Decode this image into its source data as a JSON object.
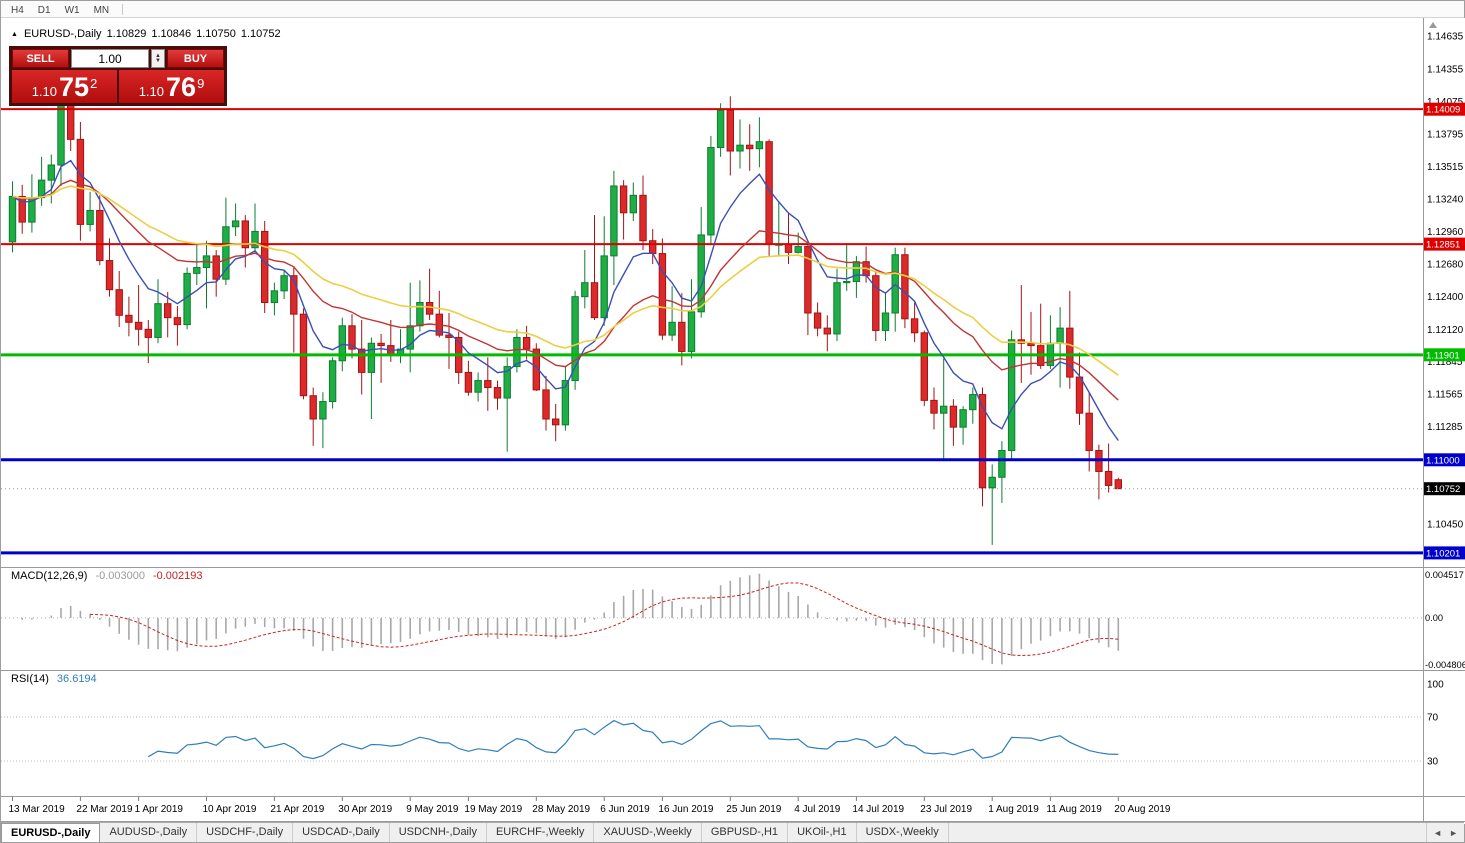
{
  "toolbar": {
    "timeframes": [
      "H4",
      "D1",
      "W1",
      "MN"
    ]
  },
  "chart_header": {
    "collapse_icon": "▲",
    "symbol": "EURUSD-,Daily",
    "open": "1.10829",
    "high": "1.10846",
    "low": "1.10750",
    "close": "1.10752"
  },
  "trade_panel": {
    "sell_label": "SELL",
    "buy_label": "BUY",
    "volume": "1.00",
    "spinner_up": "▲",
    "spinner_down": "▼",
    "sell_price": {
      "prefix": "1.10",
      "big": "75",
      "sup": "2"
    },
    "buy_price": {
      "prefix": "1.10",
      "big": "76",
      "sup": "9"
    }
  },
  "indicators": {
    "macd": {
      "name": "MACD(12,26,9)",
      "value_main": "-0.003000",
      "value_signal": "-0.002193"
    },
    "rsi": {
      "name": "RSI(14)",
      "value": "36.6194"
    }
  },
  "tabs": {
    "items": [
      {
        "label": "EURUSD-,Daily",
        "active": true
      },
      {
        "label": "AUDUSD-,Daily"
      },
      {
        "label": "USDCHF-,Daily"
      },
      {
        "label": "USDCAD-,Daily"
      },
      {
        "label": "USDCNH-,Daily"
      },
      {
        "label": "EURCHF-,Weekly"
      },
      {
        "label": "XAUUSD-,Weekly"
      },
      {
        "label": "GBPUSD-,H1"
      },
      {
        "label": "UKOil-,H1"
      },
      {
        "label": "USDX-,Weekly"
      }
    ],
    "nav_left": "◄",
    "nav_right": "►"
  },
  "chart_data": {
    "type": "candlestick",
    "symbol": "EURUSD",
    "timeframe": "Daily",
    "price_axis": {
      "min": 1.1008,
      "max": 1.1468,
      "ticks": [
        1.14635,
        1.14355,
        1.14075,
        1.13795,
        1.13515,
        1.1324,
        1.1296,
        1.1268,
        1.124,
        1.1212,
        1.11845,
        1.11565,
        1.11285,
        1.1045
      ]
    },
    "hlines": [
      {
        "value": 1.14009,
        "label": "1.14009",
        "color": "#dd0000",
        "width": 2
      },
      {
        "value": 1.12851,
        "label": "1.12851",
        "color": "#dd0000",
        "width": 2
      },
      {
        "value": 1.11901,
        "label": "1.11901",
        "color": "#00bb00",
        "width": 3
      },
      {
        "value": 1.11,
        "label": "1.11000",
        "color": "#0000cc",
        "width": 3
      },
      {
        "value": 1.10201,
        "label": "1.10201",
        "color": "#0000cc",
        "width": 3
      }
    ],
    "current_price": {
      "value": 1.10752,
      "label": "1.10752"
    },
    "colors": {
      "up_fill": "#1fae45",
      "up_stroke": "#0e7d2f",
      "down_fill": "#dc2a2a",
      "down_stroke": "#a31414",
      "macd_hist": "#a8a8a8",
      "macd_signal": "#cc2222",
      "rsi": "#2f7fba"
    },
    "ma_lines": [
      {
        "period": 8,
        "color": "#3a50b4",
        "width": 1.4
      },
      {
        "period": 21,
        "color": "#bf3535",
        "width": 1.4
      },
      {
        "period": 34,
        "color": "#eccf43",
        "width": 1.6
      }
    ],
    "x_labels": [
      [
        0,
        "13 Mar 2019"
      ],
      [
        7,
        "22 Mar 2019"
      ],
      [
        13,
        "1 Apr 2019"
      ],
      [
        20,
        "10 Apr 2019"
      ],
      [
        27,
        "21 Apr 2019"
      ],
      [
        34,
        "30 Apr 2019"
      ],
      [
        41,
        "9 May 2019"
      ],
      [
        47,
        "19 May 2019"
      ],
      [
        54,
        "28 May 2019"
      ],
      [
        61,
        "6 Jun 2019"
      ],
      [
        67,
        "16 Jun 2019"
      ],
      [
        74,
        "25 Jun 2019"
      ],
      [
        81,
        "4 Jul 2019"
      ],
      [
        87,
        "14 Jul 2019"
      ],
      [
        94,
        "23 Jul 2019"
      ],
      [
        101,
        "1 Aug 2019"
      ],
      [
        107,
        "11 Aug 2019"
      ],
      [
        114,
        "20 Aug 2019"
      ]
    ],
    "candles": [
      [
        1.1287,
        1.1339,
        1.1278,
        1.1326
      ],
      [
        1.1326,
        1.1336,
        1.1294,
        1.1304
      ],
      [
        1.1304,
        1.1345,
        1.1295,
        1.1325
      ],
      [
        1.1325,
        1.136,
        1.1318,
        1.134
      ],
      [
        1.134,
        1.1362,
        1.132,
        1.1353
      ],
      [
        1.1353,
        1.1448,
        1.1335,
        1.142
      ],
      [
        1.142,
        1.1439,
        1.1365,
        1.1375
      ],
      [
        1.1375,
        1.139,
        1.1288,
        1.1302
      ],
      [
        1.1302,
        1.133,
        1.1296,
        1.1314
      ],
      [
        1.1314,
        1.1327,
        1.1267,
        1.1271
      ],
      [
        1.1271,
        1.129,
        1.124,
        1.1246
      ],
      [
        1.1246,
        1.1262,
        1.1214,
        1.1224
      ],
      [
        1.1224,
        1.124,
        1.1206,
        1.1218
      ],
      [
        1.1218,
        1.125,
        1.1198,
        1.1212
      ],
      [
        1.1212,
        1.122,
        1.1183,
        1.1205
      ],
      [
        1.1205,
        1.1255,
        1.12,
        1.1234
      ],
      [
        1.1234,
        1.1244,
        1.1205,
        1.1222
      ],
      [
        1.1222,
        1.1232,
        1.1198,
        1.1216
      ],
      [
        1.1216,
        1.1265,
        1.1212,
        1.126
      ],
      [
        1.126,
        1.1285,
        1.125,
        1.1265
      ],
      [
        1.1265,
        1.1288,
        1.123,
        1.1275
      ],
      [
        1.1275,
        1.128,
        1.124,
        1.1255
      ],
      [
        1.1255,
        1.1325,
        1.125,
        1.13
      ],
      [
        1.13,
        1.132,
        1.1292,
        1.1305
      ],
      [
        1.1305,
        1.131,
        1.1265,
        1.1282
      ],
      [
        1.1282,
        1.132,
        1.1278,
        1.1296
      ],
      [
        1.1296,
        1.1305,
        1.1226,
        1.1235
      ],
      [
        1.1235,
        1.1252,
        1.1224,
        1.1245
      ],
      [
        1.1245,
        1.1262,
        1.1238,
        1.1258
      ],
      [
        1.1258,
        1.1265,
        1.1192,
        1.1225
      ],
      [
        1.1225,
        1.123,
        1.1152,
        1.1155
      ],
      [
        1.1155,
        1.1162,
        1.1112,
        1.1135
      ],
      [
        1.1135,
        1.1158,
        1.111,
        1.115
      ],
      [
        1.115,
        1.1188,
        1.1144,
        1.1185
      ],
      [
        1.1185,
        1.1222,
        1.1176,
        1.1215
      ],
      [
        1.1215,
        1.1225,
        1.1187,
        1.1195
      ],
      [
        1.1195,
        1.122,
        1.1156,
        1.1175
      ],
      [
        1.1175,
        1.1205,
        1.1135,
        1.12
      ],
      [
        1.12,
        1.1208,
        1.1166,
        1.1198
      ],
      [
        1.1198,
        1.122,
        1.1184,
        1.119
      ],
      [
        1.119,
        1.1212,
        1.1183,
        1.1195
      ],
      [
        1.1195,
        1.1252,
        1.1175,
        1.1215
      ],
      [
        1.1215,
        1.1254,
        1.121,
        1.1235
      ],
      [
        1.1235,
        1.1264,
        1.122,
        1.1225
      ],
      [
        1.1225,
        1.1245,
        1.1205,
        1.1207
      ],
      [
        1.1207,
        1.1226,
        1.1178,
        1.1205
      ],
      [
        1.1205,
        1.121,
        1.1165,
        1.1175
      ],
      [
        1.1175,
        1.1185,
        1.1155,
        1.1158
      ],
      [
        1.1158,
        1.1175,
        1.115,
        1.1168
      ],
      [
        1.1168,
        1.1188,
        1.1142,
        1.1162
      ],
      [
        1.1162,
        1.1168,
        1.1143,
        1.1153
      ],
      [
        1.1153,
        1.1188,
        1.1107,
        1.118
      ],
      [
        1.118,
        1.1212,
        1.1175,
        1.1205
      ],
      [
        1.1205,
        1.1215,
        1.1186,
        1.1195
      ],
      [
        1.1195,
        1.12,
        1.1159,
        1.116
      ],
      [
        1.116,
        1.1172,
        1.1125,
        1.1135
      ],
      [
        1.1135,
        1.1148,
        1.1116,
        1.113
      ],
      [
        1.113,
        1.118,
        1.1125,
        1.1168
      ],
      [
        1.1168,
        1.1245,
        1.116,
        1.124
      ],
      [
        1.124,
        1.128,
        1.123,
        1.1252
      ],
      [
        1.1252,
        1.131,
        1.122,
        1.1222
      ],
      [
        1.1222,
        1.1309,
        1.1215,
        1.1275
      ],
      [
        1.1275,
        1.1348,
        1.125,
        1.1335
      ],
      [
        1.1335,
        1.134,
        1.1289,
        1.1312
      ],
      [
        1.1312,
        1.1338,
        1.1305,
        1.1327
      ],
      [
        1.1327,
        1.1344,
        1.128,
        1.1288
      ],
      [
        1.1288,
        1.1298,
        1.1268,
        1.1277
      ],
      [
        1.1277,
        1.129,
        1.1203,
        1.1207
      ],
      [
        1.1207,
        1.1249,
        1.1202,
        1.1218
      ],
      [
        1.1218,
        1.1243,
        1.1181,
        1.1193
      ],
      [
        1.1193,
        1.1255,
        1.1187,
        1.1227
      ],
      [
        1.1227,
        1.1317,
        1.1222,
        1.1293
      ],
      [
        1.1293,
        1.1378,
        1.1285,
        1.1368
      ],
      [
        1.1368,
        1.1406,
        1.136,
        1.14
      ],
      [
        1.14,
        1.1412,
        1.1344,
        1.1365
      ],
      [
        1.1365,
        1.1392,
        1.135,
        1.137
      ],
      [
        1.137,
        1.1388,
        1.1348,
        1.1367
      ],
      [
        1.1367,
        1.1394,
        1.1351,
        1.1373
      ],
      [
        1.1373,
        1.1375,
        1.1275,
        1.1285
      ],
      [
        1.1285,
        1.1322,
        1.1275,
        1.1285
      ],
      [
        1.1285,
        1.1312,
        1.1268,
        1.1278
      ],
      [
        1.1278,
        1.1295,
        1.1277,
        1.1283
      ],
      [
        1.1283,
        1.1288,
        1.1207,
        1.1226
      ],
      [
        1.1226,
        1.1235,
        1.1206,
        1.1213
      ],
      [
        1.1213,
        1.1224,
        1.1193,
        1.1208
      ],
      [
        1.1208,
        1.1264,
        1.1202,
        1.1252
      ],
      [
        1.1252,
        1.1286,
        1.1245,
        1.1253
      ],
      [
        1.1253,
        1.1275,
        1.1239,
        1.127
      ],
      [
        1.127,
        1.1283,
        1.1252,
        1.1258
      ],
      [
        1.1258,
        1.1262,
        1.1202,
        1.1211
      ],
      [
        1.1211,
        1.1243,
        1.1202,
        1.1226
      ],
      [
        1.1226,
        1.1282,
        1.121,
        1.1276
      ],
      [
        1.1276,
        1.1282,
        1.1213,
        1.1221
      ],
      [
        1.1221,
        1.1235,
        1.1201,
        1.1209
      ],
      [
        1.1209,
        1.1211,
        1.1146,
        1.1151
      ],
      [
        1.1151,
        1.1162,
        1.1126,
        1.114
      ],
      [
        1.114,
        1.1187,
        1.1101,
        1.1146
      ],
      [
        1.1146,
        1.1152,
        1.1112,
        1.1128
      ],
      [
        1.1128,
        1.1146,
        1.1113,
        1.1143
      ],
      [
        1.1143,
        1.1162,
        1.1131,
        1.1156
      ],
      [
        1.1156,
        1.1162,
        1.106,
        1.1076
      ],
      [
        1.1076,
        1.1096,
        1.1027,
        1.1085
      ],
      [
        1.1085,
        1.1116,
        1.1063,
        1.1108
      ],
      [
        1.1108,
        1.1211,
        1.1101,
        1.1203
      ],
      [
        1.1203,
        1.125,
        1.1166,
        1.12
      ],
      [
        1.12,
        1.1227,
        1.1173,
        1.1198
      ],
      [
        1.1198,
        1.1234,
        1.1178,
        1.1181
      ],
      [
        1.1181,
        1.1224,
        1.1178,
        1.12
      ],
      [
        1.12,
        1.1231,
        1.1162,
        1.1213
      ],
      [
        1.1213,
        1.1245,
        1.1161,
        1.1171
      ],
      [
        1.1171,
        1.1192,
        1.113,
        1.114
      ],
      [
        1.114,
        1.1158,
        1.109,
        1.1108
      ],
      [
        1.1108,
        1.1113,
        1.1066,
        1.109
      ],
      [
        1.109,
        1.1114,
        1.1072,
        1.1078
      ],
      [
        1.10829,
        1.10846,
        1.1075,
        1.10752
      ]
    ],
    "macd_axis": {
      "params": [
        12,
        26,
        9
      ],
      "max": 0.004517,
      "min": -0.004806,
      "labels": [
        "0.004517",
        "0.00",
        "-0.004806"
      ]
    },
    "rsi_axis": {
      "period": 14,
      "levels": [
        70,
        30
      ],
      "axis_labels": [
        "100",
        "70",
        "30"
      ]
    }
  }
}
